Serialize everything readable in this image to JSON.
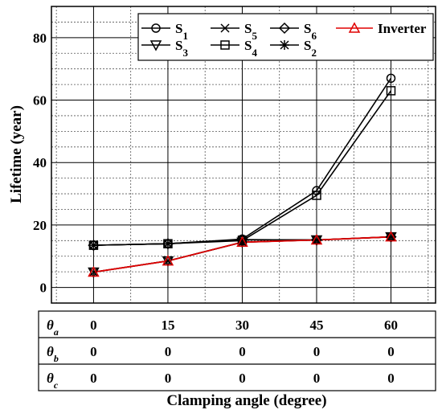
{
  "chart_data": {
    "type": "line",
    "ylabel": "Lifetime (year)",
    "xlabel": "Clamping angle (degree)",
    "xlim": [
      -8.5,
      69
    ],
    "ylim": [
      -5,
      90
    ],
    "x": [
      0,
      15,
      30,
      45,
      60
    ],
    "yticks": [
      0,
      20,
      40,
      60,
      80
    ],
    "grid": true,
    "legend_position": "top-right",
    "series": [
      {
        "name": "S",
        "sub": "1",
        "marker": "circle",
        "color": "#000000",
        "values": [
          13.5,
          14,
          15.5,
          31,
          67
        ]
      },
      {
        "name": "S",
        "sub": "5",
        "marker": "x",
        "color": "#000000",
        "values": [
          4.9,
          8.5,
          14.5,
          15.2,
          16.2
        ]
      },
      {
        "name": "S",
        "sub": "6",
        "marker": "diamond",
        "color": "#000000",
        "values": [
          13.5,
          14,
          15.3,
          15.2,
          16.2
        ]
      },
      {
        "name": "Inverter",
        "sub": "",
        "marker": "triangle-up",
        "color": "#e00000",
        "values": [
          4.9,
          8.5,
          14.5,
          15.2,
          16.2
        ]
      },
      {
        "name": "S",
        "sub": "3",
        "marker": "triangle-down",
        "color": "#000000",
        "values": [
          4.9,
          8.5,
          14.5,
          15.2,
          16.2
        ]
      },
      {
        "name": "S",
        "sub": "4",
        "marker": "square",
        "color": "#000000",
        "values": [
          13.5,
          14,
          15,
          29.5,
          63
        ]
      },
      {
        "name": "S",
        "sub": "2",
        "marker": "asterisk",
        "color": "#000000",
        "values": [
          13.5,
          14,
          15.3,
          15.2,
          16.2
        ]
      }
    ],
    "table": {
      "rows": [
        {
          "label": "θ",
          "sub": "a",
          "values": [
            "0",
            "15",
            "30",
            "45",
            "60"
          ]
        },
        {
          "label": "θ",
          "sub": "b",
          "values": [
            "0",
            "0",
            "0",
            "0",
            "0"
          ]
        },
        {
          "label": "θ",
          "sub": "c",
          "values": [
            "0",
            "0",
            "0",
            "0",
            "0"
          ]
        }
      ]
    }
  }
}
